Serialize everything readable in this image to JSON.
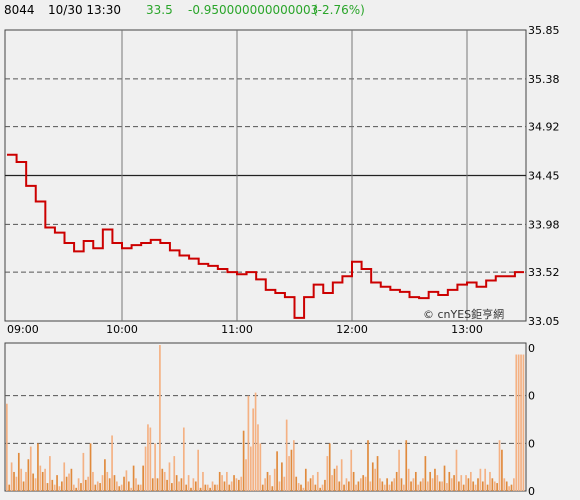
{
  "header": {
    "symbol": "8044",
    "datetime": "10/30 13:30",
    "price": "33.5",
    "change": "-0.950000000000003",
    "change_pct": "(-2.76%)"
  },
  "colors": {
    "background": "#f0f0f0",
    "price_line": "#cc0000",
    "volume_bar": "#f4b183",
    "volume_bar_dark": "#e08a3c",
    "price_text": "#2aa52a",
    "grid_dashed": "#555555",
    "grid_solid": "#777777"
  },
  "watermark": "© cnYES鉅亨網",
  "chart_data": [
    {
      "type": "line",
      "name": "price",
      "x_ticks": [
        "09:00",
        "10:00",
        "11:00",
        "12:00",
        "13:00"
      ],
      "y_ticks": [
        "35.85",
        "35.38",
        "34.92",
        "34.45",
        "33.98",
        "33.52",
        "33.05"
      ],
      "ylim": [
        33.05,
        35.85
      ],
      "reference_price": 34.45,
      "x": [
        "09:00",
        "09:05",
        "09:10",
        "09:15",
        "09:20",
        "09:25",
        "09:30",
        "09:35",
        "09:40",
        "09:45",
        "09:50",
        "09:55",
        "10:00",
        "10:05",
        "10:10",
        "10:15",
        "10:20",
        "10:25",
        "10:30",
        "10:35",
        "10:40",
        "10:45",
        "10:50",
        "10:55",
        "11:00",
        "11:05",
        "11:10",
        "11:15",
        "11:20",
        "11:25",
        "11:30",
        "11:35",
        "11:40",
        "11:45",
        "11:50",
        "11:55",
        "12:00",
        "12:05",
        "12:10",
        "12:15",
        "12:20",
        "12:25",
        "12:30",
        "12:35",
        "12:40",
        "12:45",
        "12:50",
        "12:55",
        "13:00",
        "13:05",
        "13:10",
        "13:15",
        "13:20",
        "13:25"
      ],
      "values": [
        34.65,
        34.58,
        34.35,
        34.2,
        33.95,
        33.9,
        33.8,
        33.72,
        33.82,
        33.75,
        33.93,
        33.8,
        33.75,
        33.78,
        33.8,
        33.83,
        33.8,
        33.73,
        33.68,
        33.65,
        33.6,
        33.58,
        33.55,
        33.52,
        33.5,
        33.52,
        33.45,
        33.35,
        33.32,
        33.28,
        33.08,
        33.28,
        33.4,
        33.32,
        33.42,
        33.48,
        33.62,
        33.55,
        33.42,
        33.38,
        33.35,
        33.33,
        33.28,
        33.27,
        33.33,
        33.3,
        33.35,
        33.4,
        33.42,
        33.38,
        33.44,
        33.48,
        33.48,
        33.52
      ]
    },
    {
      "type": "bar",
      "name": "volume",
      "y_ticks": [
        "0",
        "0",
        "0",
        "0"
      ],
      "values": [
        55,
        4,
        18,
        12,
        9,
        24,
        14,
        6,
        12,
        20,
        28,
        11,
        8,
        30,
        16,
        12,
        14,
        5,
        22,
        7,
        4,
        10,
        3,
        6,
        18,
        9,
        11,
        14,
        4,
        2,
        8,
        5,
        24,
        7,
        9,
        30,
        12,
        4,
        6,
        5,
        10,
        20,
        12,
        8,
        35,
        10,
        6,
        3,
        4,
        9,
        13,
        6,
        2,
        16,
        8,
        4,
        4,
        16,
        28,
        42,
        40,
        8,
        30,
        8,
        92,
        14,
        12,
        7,
        18,
        5,
        22,
        10,
        6,
        8,
        40,
        4,
        10,
        2,
        8,
        6,
        26,
        2,
        12,
        4,
        4,
        2,
        6,
        4,
        4,
        12,
        10,
        6,
        12,
        4,
        6,
        10,
        8,
        7,
        9,
        38,
        20,
        60,
        28,
        52,
        62,
        42,
        30,
        4,
        8,
        12,
        10,
        3,
        14,
        25,
        6,
        18,
        9,
        45,
        22,
        26,
        32,
        9,
        5,
        4,
        2,
        14,
        6,
        8,
        10,
        4,
        12,
        2,
        4,
        7,
        22,
        30,
        10,
        14,
        16,
        6,
        20,
        4,
        8,
        6,
        26,
        12,
        4,
        6,
        8,
        10,
        9,
        32,
        6,
        18,
        14,
        22,
        8,
        6,
        4,
        8,
        4,
        6,
        8,
        12,
        26,
        8,
        4,
        32,
        14,
        6,
        8,
        12,
        4,
        6,
        8,
        22,
        6,
        12,
        8,
        14,
        10,
        6,
        6,
        16,
        5,
        12,
        8,
        10,
        26,
        6,
        10,
        4,
        10,
        8,
        12,
        6,
        4,
        8,
        14,
        6,
        14,
        4,
        12,
        8,
        6,
        5,
        32,
        26,
        8,
        6,
        3,
        4,
        8,
        86,
        86,
        86,
        86
      ]
    }
  ]
}
